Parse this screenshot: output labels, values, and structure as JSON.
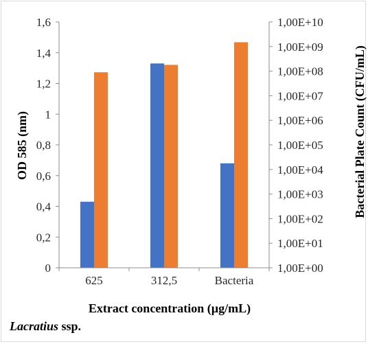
{
  "chart_data": {
    "type": "bar",
    "categories": [
      "625",
      "312,5",
      "Bacteria"
    ],
    "series": [
      {
        "axis": "left",
        "color": "#4472c4",
        "values": [
          0.43,
          1.33,
          0.68
        ]
      },
      {
        "axis": "right",
        "color": "#ed7d31",
        "values": [
          90000000,
          180000000,
          1500000000
        ]
      }
    ],
    "xlabel": "Extract concentration (µg/mL)",
    "ylabel": "OD 585 (nm)",
    "y2label": "Bacterial Plate Count (CFU/mL)",
    "ylim": [
      0,
      1.6
    ],
    "y2lim": [
      1,
      10000000000
    ],
    "y2scale": "log",
    "yticks": [
      "0",
      "0,2",
      "0,4",
      "0,6",
      "0,8",
      "1",
      "1,2",
      "1,4",
      "1,6"
    ],
    "y2ticks": [
      "1,00E+00",
      "1,00E+01",
      "1,00E+02",
      "1,00E+03",
      "1,00E+04",
      "1,00E+05",
      "1,00E+06",
      "1,00E+07",
      "1,00E+08",
      "1,00E+09",
      "1,00E+10"
    ],
    "grid": false,
    "legend": "none"
  },
  "caption": {
    "genus": "Lacratius",
    "rest": " ssp."
  }
}
